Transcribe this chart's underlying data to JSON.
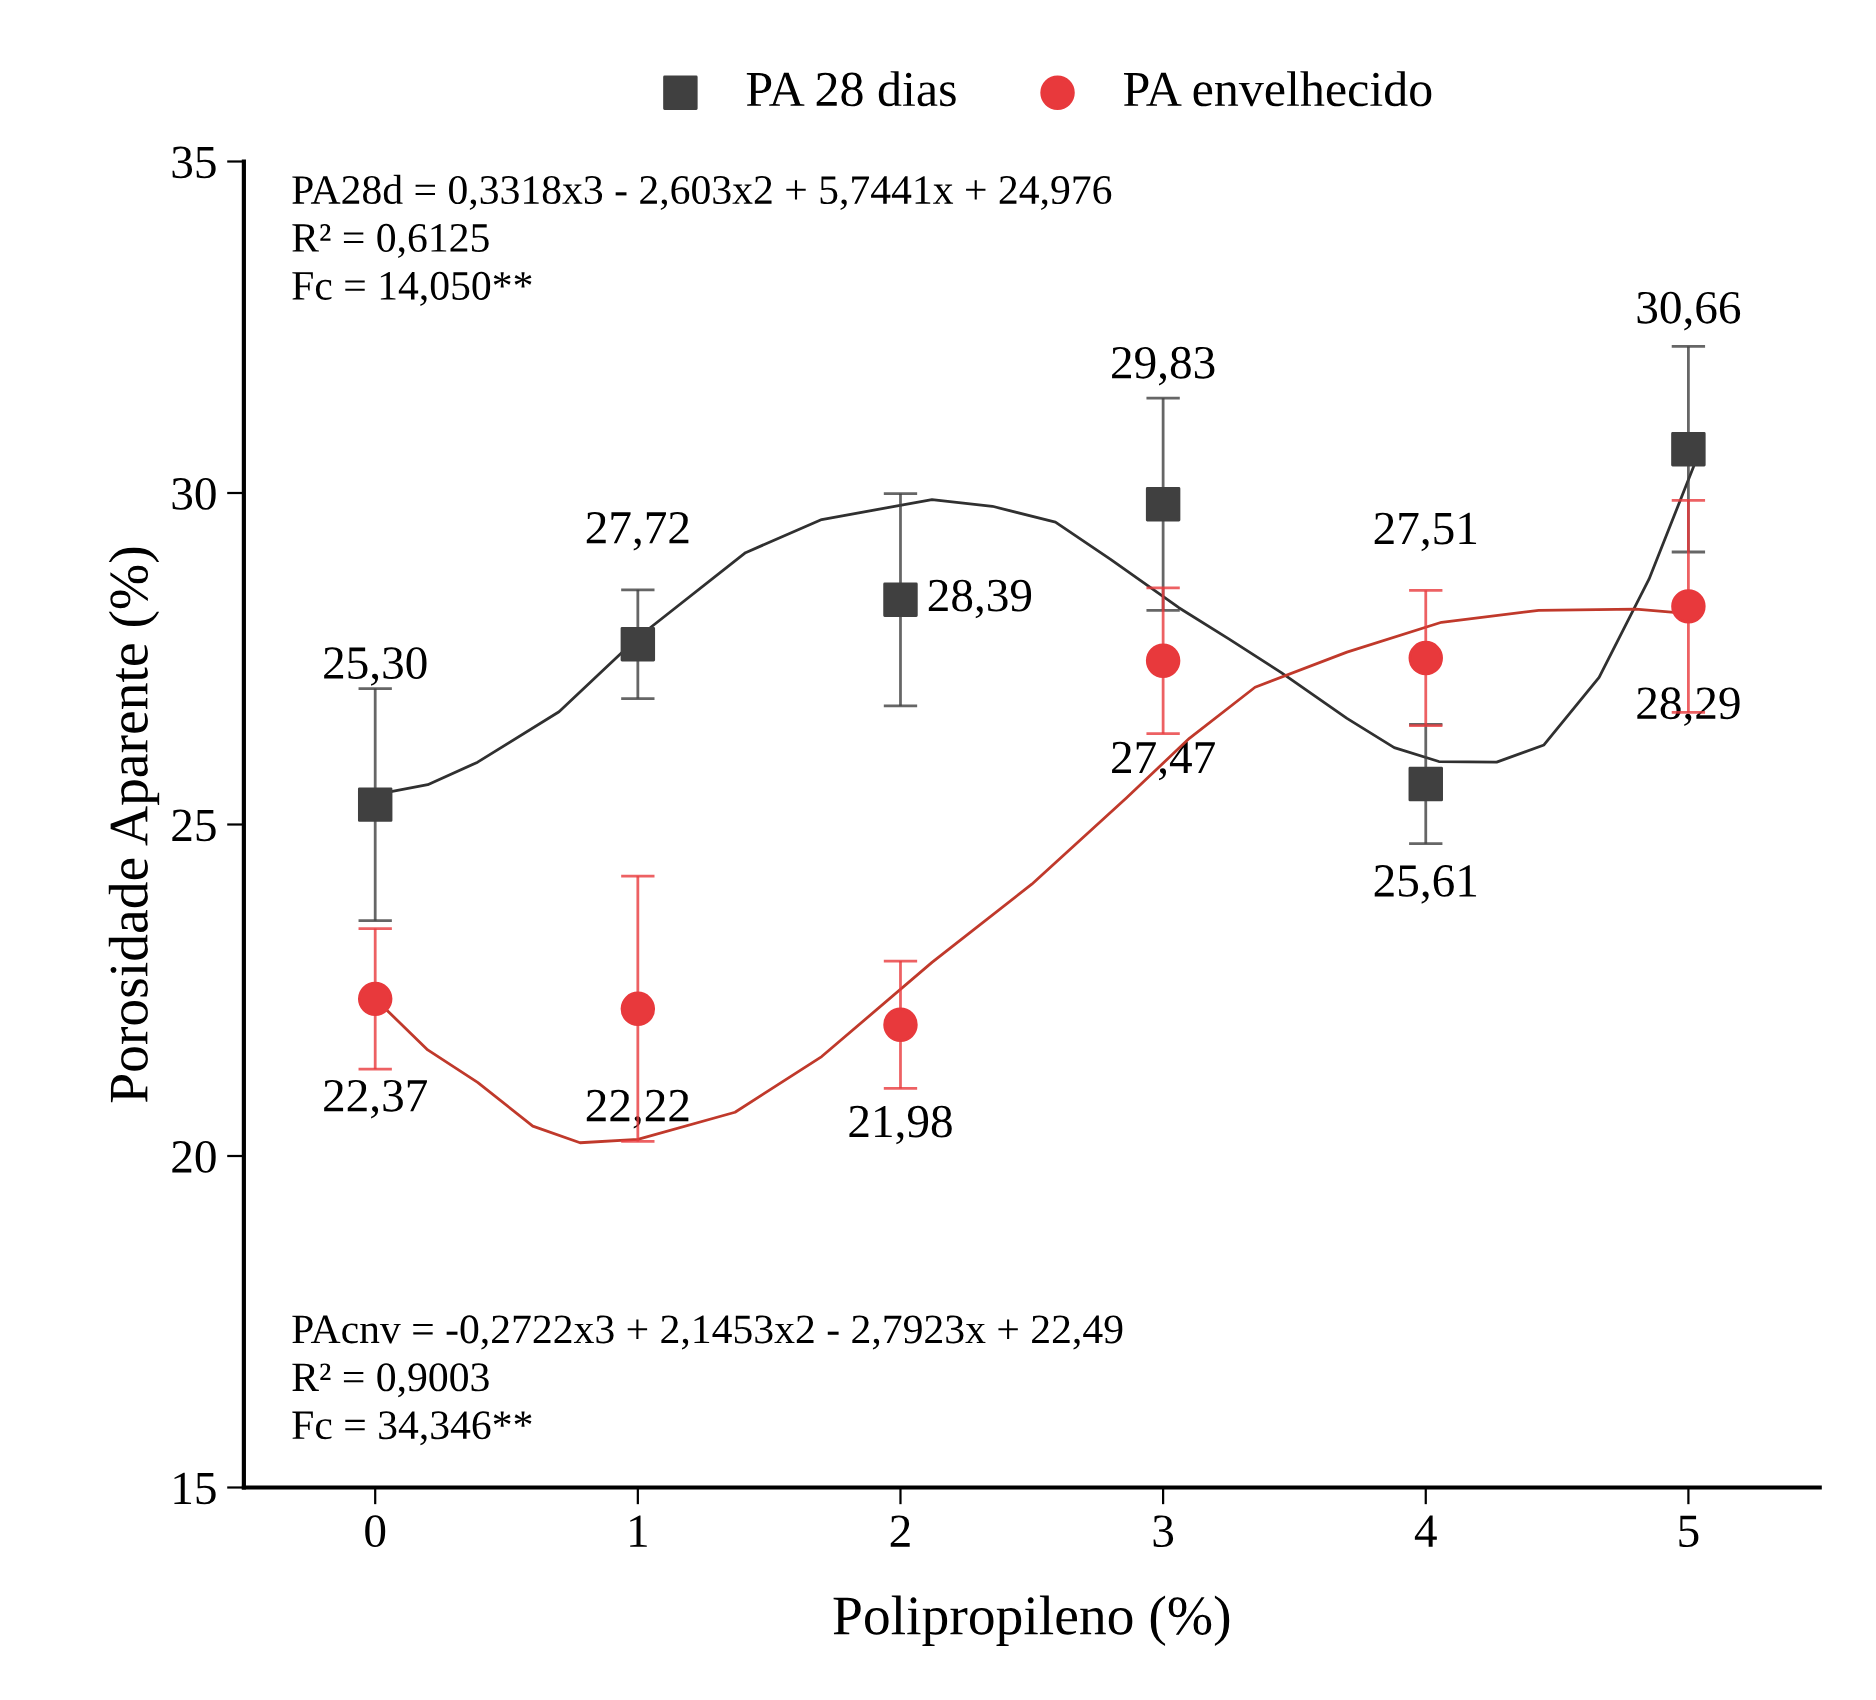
{
  "chart_data": {
    "type": "scatter",
    "xlabel": "Polipropileno (%)",
    "ylabel": "Porosidade Aparente (%)",
    "x": [
      0,
      1,
      2,
      3,
      4,
      5
    ],
    "xlim": [
      -0.5,
      5.5
    ],
    "xticks": [
      0,
      1,
      2,
      3,
      4,
      5
    ],
    "ylim": [
      15,
      35
    ],
    "yticks": [
      15,
      20,
      25,
      30,
      35
    ],
    "grid": false,
    "legend": "top",
    "series": [
      {
        "name": "PA 28 dias",
        "color": "#404040",
        "marker": "square",
        "values": [
          25.3,
          27.72,
          28.39,
          29.83,
          25.61,
          30.66
        ],
        "errors": [
          1.75,
          0.82,
          1.6,
          1.6,
          0.9,
          1.55
        ],
        "value_labels": [
          "25,30",
          "27,72",
          "28,39",
          "29,83",
          "25,61",
          "30,66"
        ]
      },
      {
        "name": "PA envelhecido",
        "color": "#e8393c",
        "marker": "circle",
        "values": [
          22.37,
          22.22,
          21.98,
          27.47,
          27.51,
          28.29
        ],
        "errors": [
          1.06,
          2.0,
          0.96,
          1.1,
          1.02,
          1.6
        ],
        "value_labels": [
          "22,37",
          "22,22",
          "21,98",
          "27,47",
          "27,51",
          "28,29"
        ]
      },
      {
        "type": "line",
        "color": "#303030",
        "marker": "none",
        "x": [
          0,
          0.2,
          0.39,
          0.7,
          1,
          1.41,
          1.7,
          2.12,
          2.35,
          2.59,
          2.8,
          3.06,
          3.25,
          3.45,
          3.7,
          3.88,
          4.05,
          4.27,
          4.45,
          4.66,
          4.85,
          5.03
        ],
        "values": [
          25.45,
          25.6,
          25.94,
          26.7,
          27.82,
          29.1,
          29.6,
          29.9,
          29.8,
          29.56,
          29.0,
          28.27,
          27.8,
          27.29,
          26.6,
          26.16,
          25.95,
          25.94,
          26.2,
          27.22,
          28.7,
          30.5
        ]
      },
      {
        "type": "line",
        "color": "#c0392b",
        "marker": "none",
        "x": [
          0,
          0.2,
          0.39,
          0.6,
          0.78,
          1.0,
          1.37,
          1.7,
          2.12,
          2.5,
          2.86,
          3.1,
          3.35,
          3.7,
          4.06,
          4.43,
          4.8,
          5.03
        ],
        "values": [
          22.37,
          21.6,
          21.11,
          20.45,
          20.2,
          20.25,
          20.66,
          21.5,
          22.92,
          24.1,
          25.4,
          26.3,
          27.07,
          27.6,
          28.05,
          28.23,
          28.25,
          28.17
        ]
      }
    ],
    "annotations": [
      {
        "text": "PA28d = 0,3318x3 - 2,603x2 + 5,7441x + 24,976\nR² = 0,6125\nFc = 14,050**"
      },
      {
        "text": "PAcnv = -0,2722x3 + 2,1453x2 - 2,7923x + 22,49\nR² = 0,9003\nFc = 34,346**"
      }
    ]
  }
}
